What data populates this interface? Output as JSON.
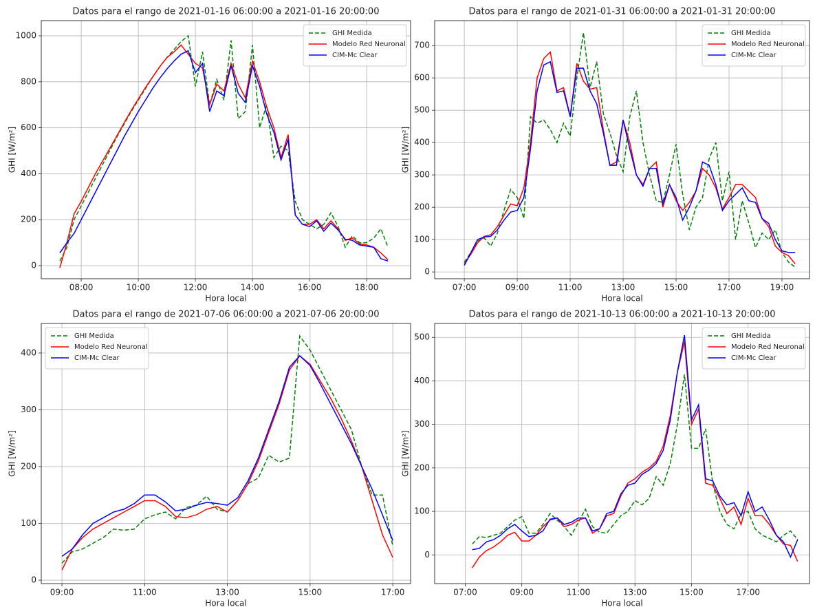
{
  "chart_data": [
    {
      "type": "line",
      "title": "Datos para el rango de 2021-01-16 06:00:00 a 2021-01-16 20:00:00",
      "x_label": "Hora local",
      "y_label": "GHI [W/m²]",
      "x": [
        7.25,
        7.5,
        7.75,
        8,
        8.25,
        8.5,
        8.75,
        9,
        9.25,
        9.5,
        9.75,
        10,
        10.25,
        10.5,
        10.75,
        11,
        11.25,
        11.5,
        11.75,
        12,
        12.25,
        12.5,
        12.75,
        13,
        13.25,
        13.5,
        13.75,
        14,
        14.25,
        14.5,
        14.75,
        15,
        15.25,
        15.5,
        15.75,
        16,
        16.25,
        16.5,
        16.75,
        17,
        17.25,
        17.5,
        17.75,
        18,
        18.25,
        18.5,
        18.75
      ],
      "series": [
        {
          "name": "GHI Medida",
          "color": "#008000",
          "dashed": true,
          "values": [
            20,
            80,
            200,
            260,
            320,
            380,
            440,
            500,
            560,
            615,
            670,
            720,
            770,
            820,
            865,
            905,
            940,
            975,
            1000,
            780,
            930,
            700,
            810,
            720,
            980,
            640,
            670,
            960,
            600,
            700,
            470,
            520,
            500,
            280,
            200,
            180,
            160,
            180,
            230,
            170,
            80,
            130,
            100,
            100,
            120,
            160,
            80
          ]
        },
        {
          "name": "Modelo Red Neuronal",
          "color": "#ff0000",
          "dashed": false,
          "values": [
            -10,
            100,
            225,
            280,
            340,
            400,
            455,
            510,
            565,
            620,
            675,
            725,
            775,
            820,
            865,
            905,
            930,
            960,
            920,
            880,
            860,
            700,
            790,
            760,
            880,
            790,
            730,
            890,
            800,
            690,
            600,
            470,
            570,
            220,
            180,
            180,
            200,
            160,
            195,
            160,
            110,
            120,
            95,
            90,
            80,
            55,
            25
          ]
        },
        {
          "name": "CIM-Mc Clear",
          "color": "#0000ff",
          "dashed": false,
          "values": [
            55,
            100,
            140,
            200,
            260,
            320,
            380,
            440,
            500,
            560,
            615,
            670,
            720,
            770,
            815,
            855,
            890,
            920,
            935,
            840,
            880,
            670,
            760,
            740,
            870,
            750,
            710,
            870,
            780,
            660,
            580,
            460,
            550,
            220,
            180,
            170,
            195,
            150,
            185,
            155,
            115,
            110,
            90,
            85,
            80,
            30,
            20
          ]
        }
      ],
      "xlim": [
        6.6,
        19.54
      ],
      "xticks": [
        {
          "value": 8,
          "label": "08:00"
        },
        {
          "value": 10,
          "label": "10:00"
        },
        {
          "value": 12,
          "label": "12:00"
        },
        {
          "value": 14,
          "label": "14:00"
        },
        {
          "value": 16,
          "label": "16:00"
        },
        {
          "value": 18,
          "label": "18:00"
        }
      ],
      "ylim": [
        -57,
        1066
      ],
      "yticks": [
        0,
        200,
        400,
        600,
        800,
        1000
      ],
      "grid": true,
      "legend": "upper right"
    },
    {
      "type": "line",
      "title": "Datos para el rango de 2021-01-31 06:00:00 a 2021-01-31 20:00:00",
      "x_label": "Hora local",
      "y_label": "GHI [W/m²]",
      "x": [
        7,
        7.25,
        7.5,
        7.75,
        8,
        8.25,
        8.5,
        8.75,
        9,
        9.25,
        9.5,
        9.75,
        10,
        10.25,
        10.5,
        10.75,
        11,
        11.25,
        11.5,
        11.75,
        12,
        12.25,
        12.5,
        12.75,
        13,
        13.25,
        13.5,
        13.75,
        14,
        14.25,
        14.5,
        14.75,
        15,
        15.25,
        15.5,
        15.75,
        16,
        16.25,
        16.5,
        16.75,
        17,
        17.25,
        17.5,
        17.75,
        18,
        18.25,
        18.5,
        18.75,
        19,
        19.25,
        19.5
      ],
      "series": [
        {
          "name": "GHI Medida",
          "color": "#008000",
          "dashed": true,
          "values": [
            30,
            60,
            95,
            105,
            80,
            120,
            190,
            255,
            230,
            165,
            480,
            460,
            470,
            440,
            400,
            460,
            420,
            600,
            740,
            570,
            650,
            490,
            430,
            360,
            310,
            480,
            560,
            400,
            300,
            220,
            215,
            300,
            395,
            240,
            130,
            200,
            230,
            350,
            400,
            220,
            310,
            100,
            220,
            150,
            75,
            120,
            100,
            130,
            60,
            30,
            15
          ]
        },
        {
          "name": "Modelo Red Neuronal",
          "color": "#ff0000",
          "dashed": false,
          "values": [
            25,
            55,
            90,
            110,
            115,
            140,
            175,
            210,
            205,
            260,
            400,
            600,
            660,
            680,
            560,
            570,
            480,
            645,
            590,
            565,
            570,
            440,
            330,
            340,
            470,
            400,
            300,
            270,
            320,
            340,
            200,
            270,
            220,
            190,
            215,
            250,
            320,
            300,
            260,
            195,
            230,
            270,
            270,
            250,
            230,
            165,
            140,
            80,
            60,
            50,
            25
          ]
        },
        {
          "name": "CIM-Mc Clear",
          "color": "#0000ff",
          "dashed": false,
          "values": [
            20,
            60,
            100,
            108,
            110,
            130,
            160,
            185,
            190,
            230,
            380,
            560,
            640,
            650,
            555,
            560,
            480,
            630,
            630,
            560,
            520,
            430,
            330,
            330,
            470,
            380,
            300,
            265,
            320,
            320,
            210,
            270,
            230,
            160,
            200,
            250,
            340,
            330,
            270,
            190,
            220,
            240,
            260,
            220,
            215,
            165,
            150,
            100,
            65,
            60,
            60
          ]
        }
      ],
      "xlim": [
        5.88,
        20.04
      ],
      "xticks": [
        {
          "value": 7,
          "label": "07:00"
        },
        {
          "value": 9,
          "label": "09:00"
        },
        {
          "value": 11,
          "label": "11:00"
        },
        {
          "value": 13,
          "label": "13:00"
        },
        {
          "value": 15,
          "label": "15:00"
        },
        {
          "value": 17,
          "label": "17:00"
        },
        {
          "value": 19,
          "label": "19:00"
        }
      ],
      "ylim": [
        -21,
        777
      ],
      "yticks": [
        0,
        100,
        200,
        300,
        400,
        500,
        600,
        700
      ],
      "grid": true,
      "legend": "upper right"
    },
    {
      "type": "line",
      "title": "Datos para el rango de 2021-07-06 06:00:00 a 2021-07-06 20:00:00",
      "x_label": "Hora local",
      "y_label": "GHI [W/m²]",
      "x": [
        9,
        9.25,
        9.5,
        9.75,
        10,
        10.25,
        10.5,
        10.75,
        11,
        11.25,
        11.5,
        11.75,
        12,
        12.25,
        12.5,
        12.75,
        13,
        13.25,
        13.5,
        13.75,
        14,
        14.25,
        14.5,
        14.75,
        15,
        15.25,
        15.5,
        15.75,
        16,
        16.25,
        16.5,
        16.75,
        17
      ],
      "series": [
        {
          "name": "GHI Medida",
          "color": "#008000",
          "dashed": true,
          "values": [
            30,
            50,
            55,
            65,
            75,
            90,
            88,
            90,
            108,
            115,
            120,
            108,
            128,
            132,
            148,
            125,
            120,
            140,
            170,
            180,
            220,
            208,
            215,
            430,
            405,
            370,
            335,
            300,
            265,
            200,
            150,
            150,
            60
          ]
        },
        {
          "name": "Modelo Red Neuronal",
          "color": "#ff0000",
          "dashed": false,
          "values": [
            18,
            55,
            75,
            90,
            100,
            110,
            120,
            130,
            140,
            140,
            130,
            112,
            110,
            115,
            125,
            130,
            120,
            140,
            170,
            210,
            260,
            310,
            370,
            395,
            380,
            350,
            320,
            285,
            245,
            200,
            140,
            80,
            40
          ]
        },
        {
          "name": "CIM-Mc Clear",
          "color": "#0000ff",
          "dashed": false,
          "values": [
            42,
            55,
            80,
            100,
            110,
            120,
            125,
            135,
            150,
            150,
            138,
            122,
            125,
            132,
            137,
            135,
            132,
            145,
            175,
            215,
            265,
            315,
            375,
            395,
            378,
            345,
            310,
            275,
            240,
            200,
            160,
            115,
            70
          ]
        }
      ],
      "xlim": [
        8.5,
        17.43
      ],
      "xticks": [
        {
          "value": 9,
          "label": "09:00"
        },
        {
          "value": 11,
          "label": "11:00"
        },
        {
          "value": 13,
          "label": "13:00"
        },
        {
          "value": 15,
          "label": "15:00"
        },
        {
          "value": 17,
          "label": "17:00"
        }
      ],
      "ylim": [
        -6,
        452
      ],
      "yticks": [
        0,
        100,
        200,
        300,
        400
      ],
      "grid": true,
      "legend": "upper left"
    },
    {
      "type": "line",
      "title": "Datos para el rango de 2021-10-13 06:00:00 a 2021-10-13 20:00:00",
      "x_label": "Hora local",
      "y_label": "GHI [W/m²]",
      "x": [
        7.25,
        7.5,
        7.75,
        8,
        8.25,
        8.5,
        8.75,
        9,
        9.25,
        9.5,
        9.75,
        10,
        10.25,
        10.5,
        10.75,
        11,
        11.25,
        11.5,
        11.75,
        12,
        12.25,
        12.5,
        12.75,
        13,
        13.25,
        13.5,
        13.75,
        14,
        14.25,
        14.5,
        14.75,
        15,
        15.25,
        15.5,
        15.75,
        16,
        16.25,
        16.5,
        16.75,
        17,
        17.25,
        17.5,
        17.75,
        18,
        18.25,
        18.5,
        18.75
      ],
      "series": [
        {
          "name": "GHI Medida",
          "color": "#008000",
          "dashed": true,
          "values": [
            25,
            42,
            40,
            45,
            50,
            65,
            80,
            88,
            50,
            50,
            70,
            95,
            80,
            65,
            45,
            75,
            105,
            65,
            52,
            50,
            70,
            90,
            100,
            125,
            115,
            130,
            180,
            160,
            210,
            300,
            415,
            245,
            245,
            290,
            165,
            100,
            70,
            60,
            95,
            100,
            60,
            45,
            38,
            30,
            45,
            55,
            35
          ]
        },
        {
          "name": "Modelo Red Neuronal",
          "color": "#ff0000",
          "dashed": false,
          "values": [
            -30,
            -5,
            10,
            18,
            30,
            45,
            52,
            32,
            32,
            45,
            65,
            80,
            85,
            65,
            70,
            80,
            85,
            50,
            60,
            90,
            95,
            135,
            165,
            175,
            190,
            200,
            215,
            250,
            320,
            420,
            490,
            300,
            335,
            165,
            160,
            130,
            95,
            110,
            70,
            130,
            90,
            90,
            70,
            45,
            25,
            22,
            -15
          ]
        },
        {
          "name": "CIM-Mc Clear",
          "color": "#0000ff",
          "dashed": false,
          "values": [
            12,
            15,
            30,
            35,
            45,
            60,
            70,
            55,
            42,
            45,
            55,
            82,
            85,
            70,
            75,
            85,
            85,
            55,
            60,
            95,
            100,
            140,
            160,
            165,
            185,
            195,
            210,
            240,
            310,
            420,
            505,
            310,
            345,
            175,
            170,
            135,
            115,
            120,
            90,
            145,
            100,
            110,
            80,
            45,
            30,
            -5,
            35
          ]
        }
      ],
      "xlim": [
        5.92,
        19.17
      ],
      "xticks": [
        {
          "value": 7,
          "label": "07:00"
        },
        {
          "value": 9,
          "label": "09:00"
        },
        {
          "value": 11,
          "label": "11:00"
        },
        {
          "value": 13,
          "label": "13:00"
        },
        {
          "value": 15,
          "label": "15:00"
        },
        {
          "value": 17,
          "label": "17:00"
        }
      ],
      "ylim": [
        -66,
        532
      ],
      "yticks": [
        0,
        100,
        200,
        300,
        400,
        500
      ],
      "grid": true,
      "legend": "upper right"
    }
  ]
}
